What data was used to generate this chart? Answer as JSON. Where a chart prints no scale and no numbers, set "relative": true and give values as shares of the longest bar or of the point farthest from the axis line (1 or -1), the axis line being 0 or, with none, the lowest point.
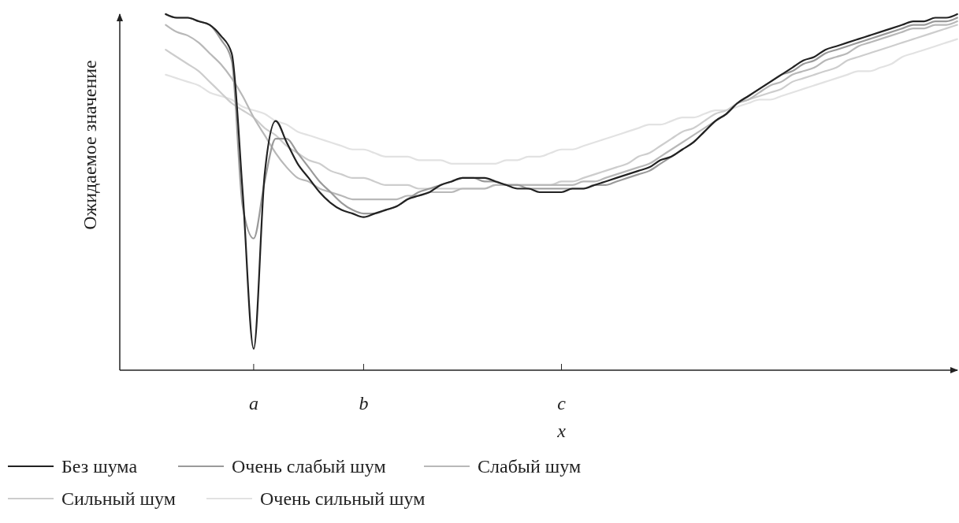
{
  "chart_data": {
    "type": "line",
    "relative": true,
    "xlabel": "x",
    "ylabel": "Ожидаемое значение",
    "categories": [
      null,
      null,
      null,
      null,
      null,
      null,
      null,
      null,
      null,
      null,
      null,
      null,
      "a",
      null,
      null,
      null,
      null,
      null,
      null,
      null,
      null,
      null,
      "b",
      null,
      null,
      null,
      null,
      null,
      null,
      null,
      null,
      null,
      null,
      null,
      null,
      null,
      null,
      null,
      null,
      null,
      "c",
      null,
      null,
      null,
      null,
      null,
      null,
      null,
      null,
      null,
      null,
      null,
      null,
      null,
      null,
      null,
      null,
      null,
      null,
      null,
      null,
      null,
      null,
      null,
      null,
      null,
      null,
      null,
      null,
      null,
      null,
      null,
      null,
      null,
      null,
      null,
      null
    ],
    "legend": "bottom",
    "series": [
      {
        "name": "Без шума",
        "color": "#222222",
        "values": [
          null,
          null,
          null,
          null,
          1.0,
          0.99,
          0.99,
          0.98,
          0.97,
          0.94,
          0.89,
          0.5,
          0.06,
          0.55,
          0.7,
          0.64,
          0.58,
          0.54,
          0.5,
          0.47,
          0.45,
          0.44,
          0.43,
          0.44,
          0.45,
          0.46,
          0.48,
          0.49,
          0.5,
          0.52,
          0.53,
          0.54,
          0.54,
          0.54,
          0.53,
          0.52,
          0.51,
          0.51,
          0.5,
          0.5,
          0.5,
          0.51,
          0.51,
          0.52,
          0.53,
          0.54,
          0.55,
          0.56,
          0.57,
          0.59,
          0.6,
          0.62,
          0.64,
          0.67,
          0.7,
          0.72,
          0.75,
          0.77,
          0.79,
          0.81,
          0.83,
          0.85,
          0.87,
          0.88,
          0.9,
          0.91,
          0.92,
          0.93,
          0.94,
          0.95,
          0.96,
          0.97,
          0.98,
          0.98,
          0.99,
          0.99,
          1.0
        ]
      },
      {
        "name": "Очень слабый шум",
        "color": "#9a9a9a",
        "values": [
          null,
          null,
          null,
          null,
          1.0,
          0.99,
          0.99,
          0.98,
          0.97,
          0.93,
          0.87,
          0.46,
          0.37,
          0.53,
          0.65,
          0.65,
          0.61,
          0.57,
          0.53,
          0.5,
          0.47,
          0.45,
          0.44,
          0.44,
          0.45,
          0.46,
          0.48,
          0.5,
          0.51,
          0.52,
          0.53,
          0.54,
          0.54,
          0.53,
          0.53,
          0.52,
          0.52,
          0.51,
          0.51,
          0.51,
          0.51,
          0.51,
          0.51,
          0.52,
          0.52,
          0.53,
          0.54,
          0.55,
          0.56,
          0.58,
          0.6,
          0.62,
          0.64,
          0.67,
          0.7,
          0.72,
          0.75,
          0.77,
          0.79,
          0.81,
          0.83,
          0.84,
          0.86,
          0.87,
          0.89,
          0.9,
          0.91,
          0.92,
          0.93,
          0.94,
          0.95,
          0.96,
          0.97,
          0.97,
          0.98,
          0.98,
          0.99
        ]
      },
      {
        "name": "Слабый шум",
        "color": "#b8b8b8",
        "values": [
          null,
          null,
          null,
          null,
          0.97,
          0.95,
          0.94,
          0.92,
          0.89,
          0.86,
          0.82,
          0.77,
          0.71,
          0.66,
          0.61,
          0.57,
          0.54,
          0.53,
          0.51,
          0.5,
          0.49,
          0.48,
          0.48,
          0.48,
          0.48,
          0.48,
          0.49,
          0.49,
          0.5,
          0.5,
          0.5,
          0.51,
          0.51,
          0.51,
          0.52,
          0.52,
          0.52,
          0.52,
          0.52,
          0.52,
          0.52,
          0.52,
          0.53,
          0.53,
          0.54,
          0.55,
          0.56,
          0.57,
          0.58,
          0.6,
          0.62,
          0.64,
          0.66,
          0.68,
          0.7,
          0.72,
          0.75,
          0.76,
          0.78,
          0.8,
          0.81,
          0.83,
          0.84,
          0.85,
          0.87,
          0.88,
          0.89,
          0.91,
          0.92,
          0.93,
          0.94,
          0.95,
          0.96,
          0.96,
          0.97,
          0.97,
          0.98
        ]
      },
      {
        "name": "Сильный шум",
        "color": "#cdcdcd",
        "values": [
          null,
          null,
          null,
          null,
          0.9,
          0.88,
          0.86,
          0.84,
          0.81,
          0.78,
          0.75,
          0.73,
          0.71,
          0.68,
          0.66,
          0.63,
          0.61,
          0.59,
          0.58,
          0.56,
          0.55,
          0.54,
          0.54,
          0.53,
          0.52,
          0.52,
          0.52,
          0.51,
          0.51,
          0.51,
          0.51,
          0.51,
          0.51,
          0.51,
          0.52,
          0.52,
          0.52,
          0.52,
          0.52,
          0.52,
          0.53,
          0.53,
          0.54,
          0.55,
          0.56,
          0.57,
          0.58,
          0.6,
          0.61,
          0.63,
          0.65,
          0.67,
          0.68,
          0.7,
          0.72,
          0.73,
          0.75,
          0.76,
          0.77,
          0.78,
          0.79,
          0.81,
          0.82,
          0.83,
          0.84,
          0.85,
          0.87,
          0.88,
          0.89,
          0.9,
          0.91,
          0.92,
          0.93,
          0.94,
          0.95,
          0.96,
          0.97
        ]
      },
      {
        "name": "Очень сильный шум",
        "color": "#e2e2e2",
        "values": [
          null,
          null,
          null,
          null,
          0.83,
          0.82,
          0.81,
          0.8,
          0.78,
          0.77,
          0.76,
          0.74,
          0.73,
          0.72,
          0.7,
          0.69,
          0.67,
          0.66,
          0.65,
          0.64,
          0.63,
          0.62,
          0.62,
          0.61,
          0.6,
          0.6,
          0.6,
          0.59,
          0.59,
          0.59,
          0.58,
          0.58,
          0.58,
          0.58,
          0.58,
          0.59,
          0.59,
          0.6,
          0.6,
          0.61,
          0.62,
          0.62,
          0.63,
          0.64,
          0.65,
          0.66,
          0.67,
          0.68,
          0.69,
          0.69,
          0.7,
          0.71,
          0.71,
          0.72,
          0.73,
          0.73,
          0.74,
          0.75,
          0.76,
          0.76,
          0.77,
          0.78,
          0.79,
          0.8,
          0.81,
          0.82,
          0.83,
          0.84,
          0.84,
          0.85,
          0.86,
          0.88,
          0.89,
          0.9,
          0.91,
          0.92,
          0.93
        ]
      }
    ]
  }
}
